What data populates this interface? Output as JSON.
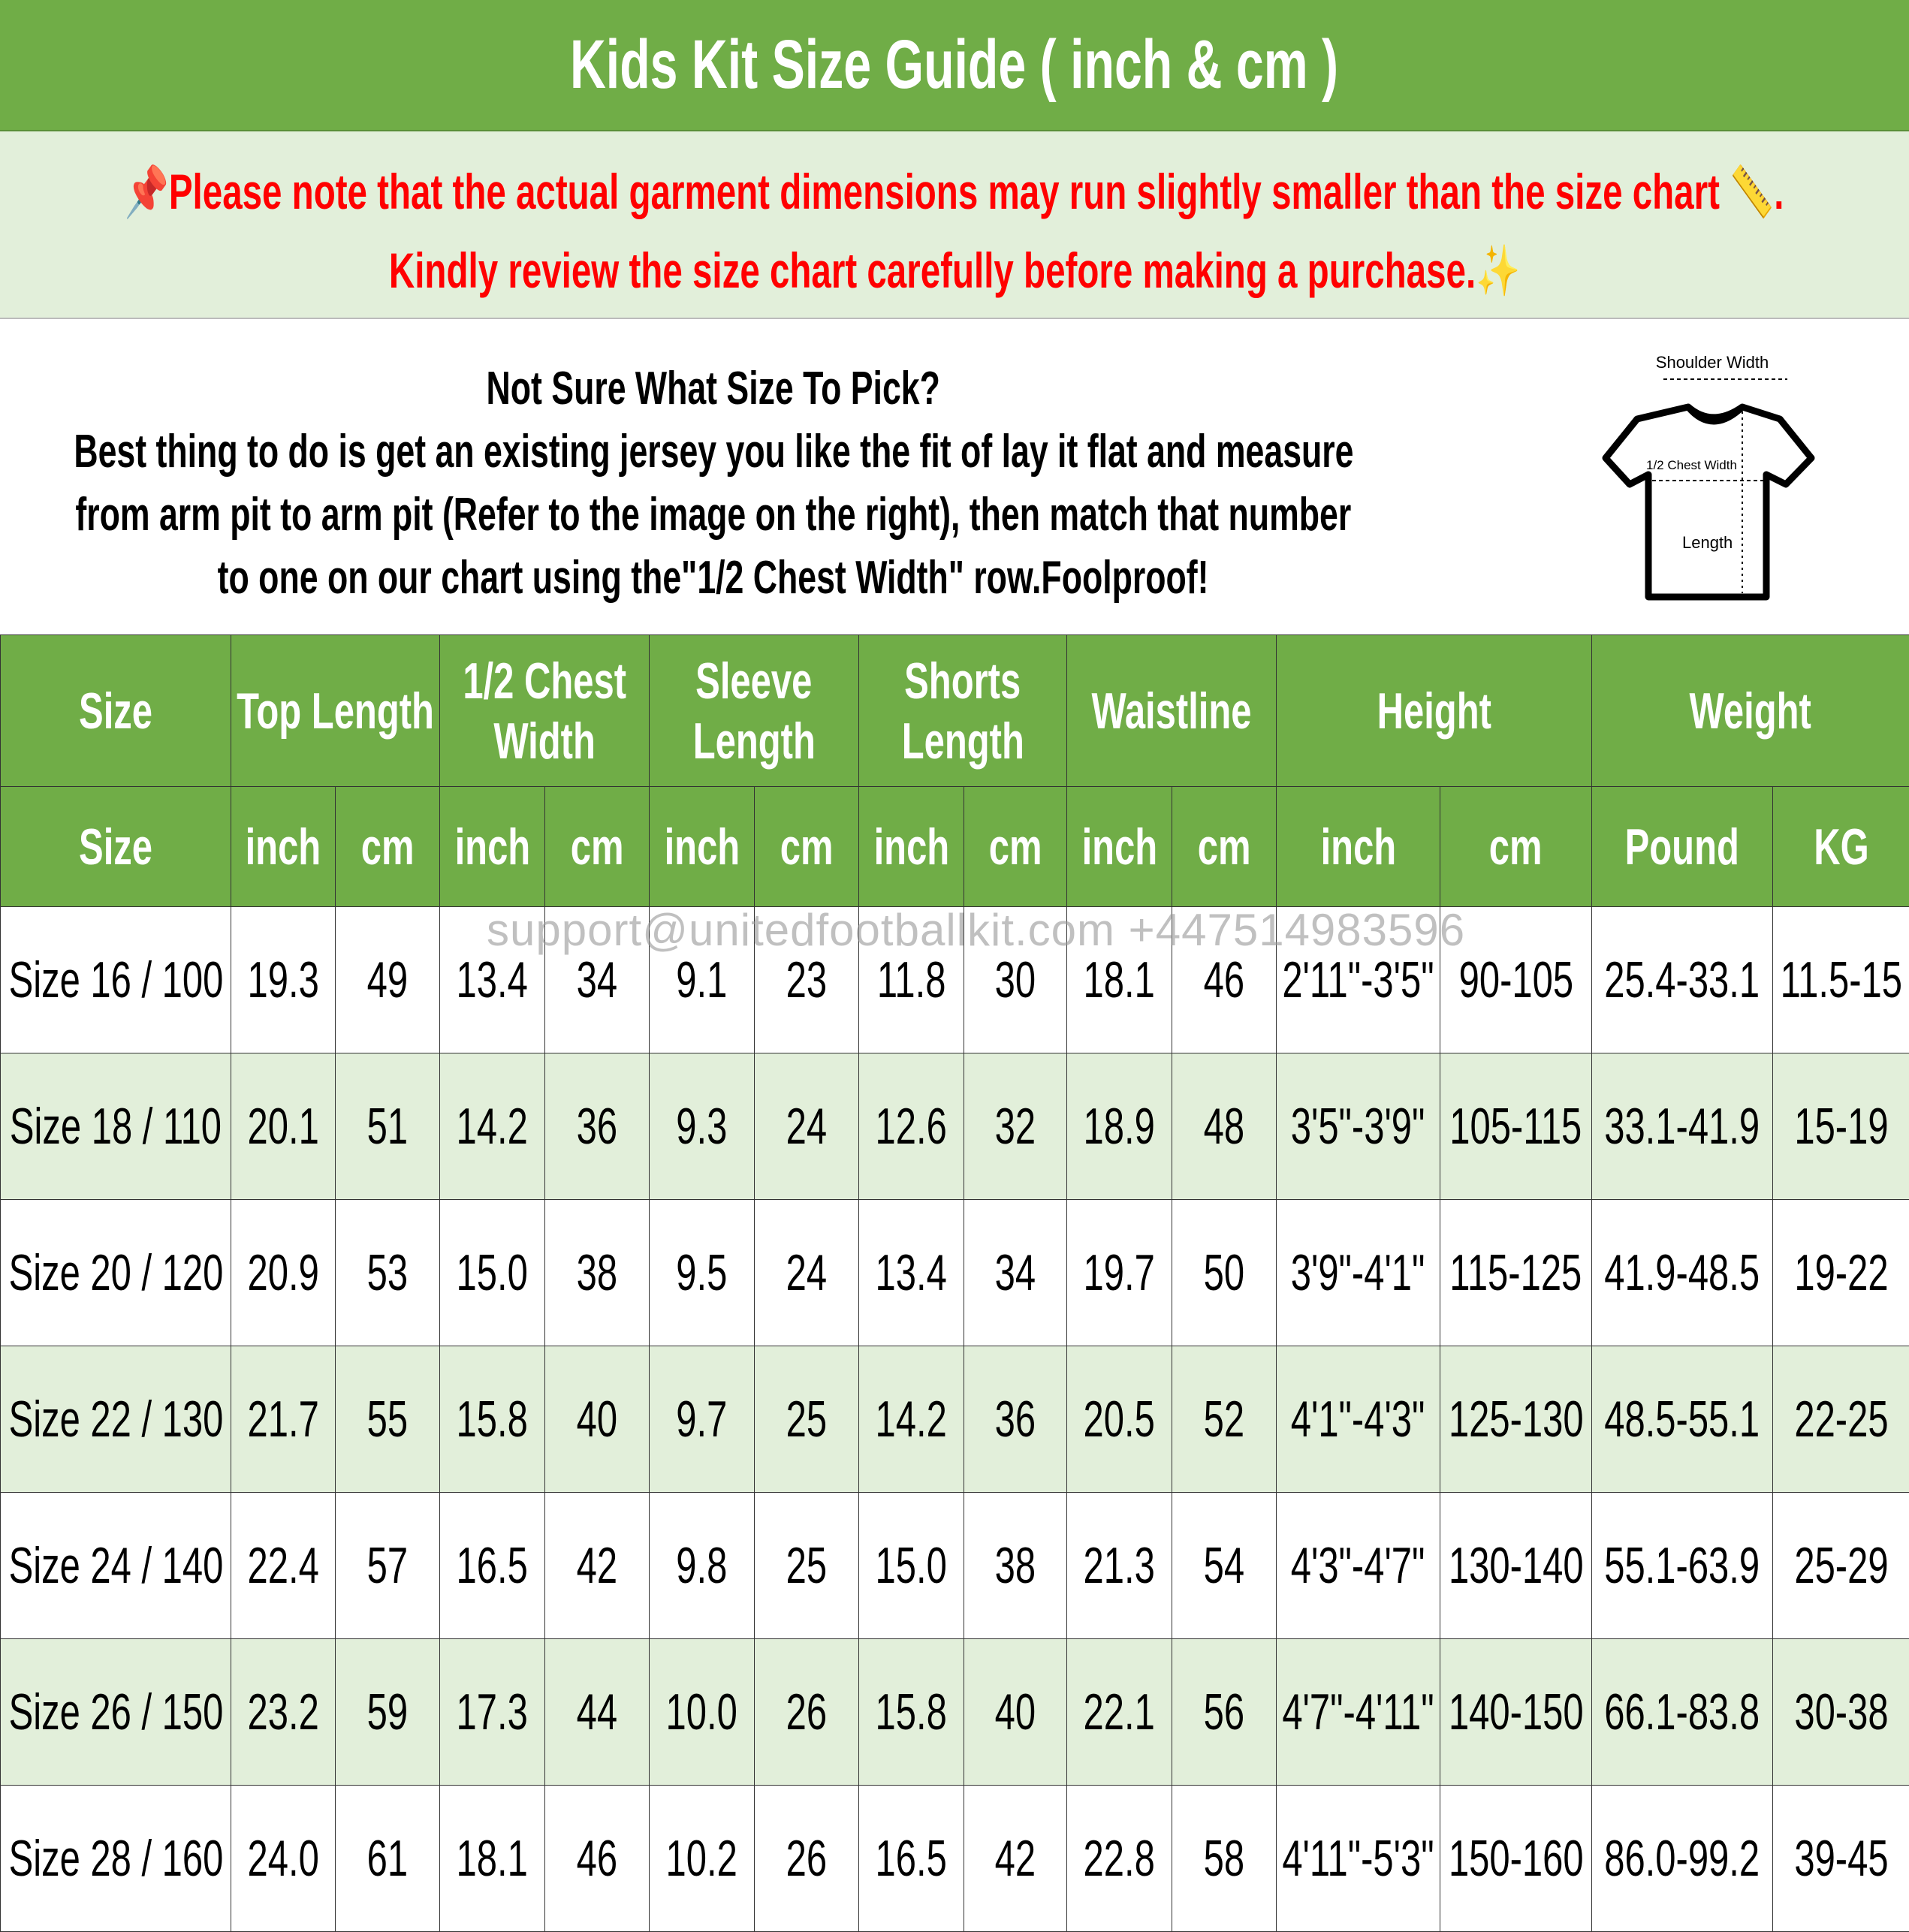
{
  "title": "Kids Kit Size Guide ( inch & cm )",
  "note": {
    "line1": "Please note that the actual garment dimensions may run slightly smaller than the size chart",
    "line1_end": ".",
    "line2": "Kindly review the size chart carefully before making a purchase.",
    "icons": [
      "pushpin-icon",
      "ruler-icon",
      "sparkles-icon"
    ],
    "color": "#FF0000"
  },
  "intro": {
    "heading": "Not Sure What Size To Pick?",
    "lines": [
      "Best thing to do is get an existing jersey you like the fit of lay it flat and measure",
      "from arm pit to arm pit (Refer to the image on the right), then match that number",
      "to one on our chart using the\"1/2 Chest Width\" row.Foolproof!"
    ]
  },
  "diagram": {
    "shoulder": "Shoulder Width",
    "chest": "1/2 Chest Width",
    "length": "Length"
  },
  "watermark": "support@unitedfootballkit.com +447514983596",
  "colors": {
    "header": "#70AD47",
    "alt_row": "#E2EFDA"
  },
  "table": {
    "groups": [
      [
        "Size"
      ],
      [
        "Top Length"
      ],
      [
        "1/2 Chest",
        "Width"
      ],
      [
        "Sleeve",
        "Length"
      ],
      [
        "Shorts",
        "Length"
      ],
      [
        "Waistline"
      ],
      [
        "Height"
      ],
      [
        "Weight"
      ]
    ],
    "units": [
      "Size",
      "inch",
      "cm",
      "inch",
      "cm",
      "inch",
      "cm",
      "inch",
      "cm",
      "inch",
      "cm",
      "inch",
      "cm",
      "Pound",
      "KG"
    ],
    "rows": [
      [
        "Size 16 / 100",
        "19.3",
        "49",
        "13.4",
        "34",
        "9.1",
        "23",
        "11.8",
        "30",
        "18.1",
        "46",
        "2'11\"-3'5\"",
        "90-105",
        "25.4-33.1",
        "11.5-15"
      ],
      [
        "Size 18 / 110",
        "20.1",
        "51",
        "14.2",
        "36",
        "9.3",
        "24",
        "12.6",
        "32",
        "18.9",
        "48",
        "3'5\"-3'9\"",
        "105-115",
        "33.1-41.9",
        "15-19"
      ],
      [
        "Size 20 / 120",
        "20.9",
        "53",
        "15.0",
        "38",
        "9.5",
        "24",
        "13.4",
        "34",
        "19.7",
        "50",
        "3'9\"-4'1\"",
        "115-125",
        "41.9-48.5",
        "19-22"
      ],
      [
        "Size 22 / 130",
        "21.7",
        "55",
        "15.8",
        "40",
        "9.7",
        "25",
        "14.2",
        "36",
        "20.5",
        "52",
        "4'1\"-4'3\"",
        "125-130",
        "48.5-55.1",
        "22-25"
      ],
      [
        "Size 24 / 140",
        "22.4",
        "57",
        "16.5",
        "42",
        "9.8",
        "25",
        "15.0",
        "38",
        "21.3",
        "54",
        "4'3\"-4'7\"",
        "130-140",
        "55.1-63.9",
        "25-29"
      ],
      [
        "Size 26 / 150",
        "23.2",
        "59",
        "17.3",
        "44",
        "10.0",
        "26",
        "15.8",
        "40",
        "22.1",
        "56",
        "4'7\"-4'11\"",
        "140-150",
        "66.1-83.8",
        "30-38"
      ],
      [
        "Size 28 / 160",
        "24.0",
        "61",
        "18.1",
        "46",
        "10.2",
        "26",
        "16.5",
        "42",
        "22.8",
        "58",
        "4'11\"-5'3\"",
        "150-160",
        "86.0-99.2",
        "39-45"
      ]
    ]
  }
}
